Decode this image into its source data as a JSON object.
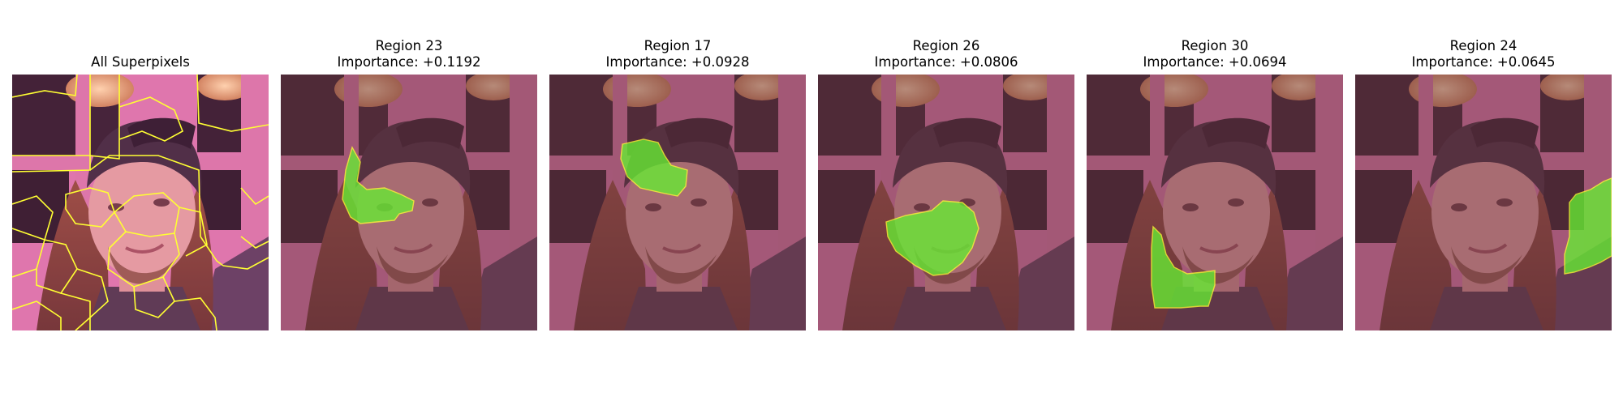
{
  "figure": {
    "panels": [
      {
        "id": "all",
        "title_line1": "All Superpixels",
        "title_line2": ""
      },
      {
        "id": "r23",
        "title_line1": "Region 23",
        "title_line2": "Importance: +0.1192"
      },
      {
        "id": "r17",
        "title_line1": "Region 17",
        "title_line2": "Importance: +0.0928"
      },
      {
        "id": "r26",
        "title_line1": "Region 26",
        "title_line2": "Importance: +0.0806"
      },
      {
        "id": "r30",
        "title_line1": "Region 30",
        "title_line2": "Importance: +0.0694"
      },
      {
        "id": "r24",
        "title_line1": "Region 24",
        "title_line2": "Importance: +0.0645"
      }
    ],
    "colors": {
      "boundary": "#ffff33",
      "highlight": "#66ee33",
      "dim_overlay": "#7a3c52"
    }
  }
}
